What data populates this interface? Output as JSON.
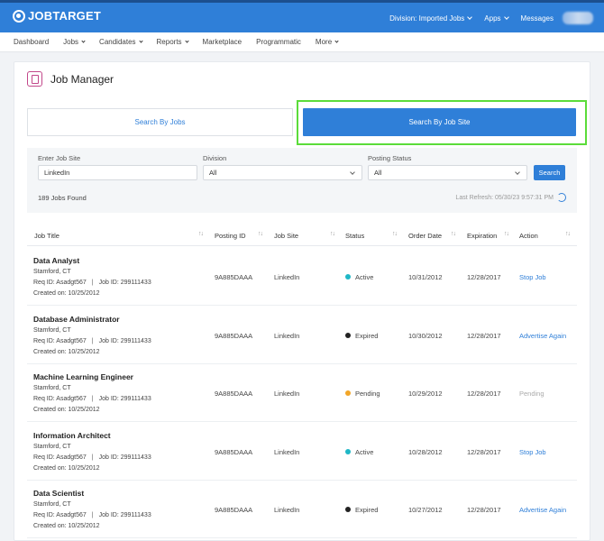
{
  "header": {
    "logo_text": "JOBTARGET",
    "division_label": "Division: Imported Jobs",
    "apps_label": "Apps",
    "messages_label": "Messages"
  },
  "nav": [
    "Dashboard",
    "Jobs",
    "Candidates",
    "Reports",
    "Marketplace",
    "Programmatic",
    "More"
  ],
  "page": {
    "title": "Job Manager",
    "tab_jobs": "Search By Jobs",
    "tab_site": "Search By Job Site"
  },
  "filters": {
    "job_site_label": "Enter Job Site",
    "job_site_value": "LinkedIn",
    "division_label": "Division",
    "division_value": "All",
    "status_label": "Posting Status",
    "status_value": "All",
    "search_label": "Search",
    "jobs_found": "189 Jobs Found",
    "last_refresh": "Last Refresh: 05/30/23 9:57:31 PM"
  },
  "columns": [
    "Job Title",
    "Posting ID",
    "Job Site",
    "Status",
    "Order Date",
    "Expiration",
    "Action"
  ],
  "colors": {
    "active": "#1fb7c6",
    "expired": "#222222",
    "pending": "#f2a628",
    "accent": "#2f7fd8"
  },
  "rows": [
    {
      "title": "Data Analyst",
      "location": "Stamford, CT",
      "req": "Req ID: Asadgt567",
      "job_id": "Job ID: 299111433",
      "created": "Created on: 10/25/2012",
      "posting_id": "9A885DAAA",
      "site": "LinkedIn",
      "status": "Active",
      "order_date": "10/31/2012",
      "expiration": "12/28/2017",
      "action": "Stop Job"
    },
    {
      "title": "Database Administrator",
      "location": "Stamford, CT",
      "req": "Req ID: Asadgt567",
      "job_id": "Job ID: 299111433",
      "created": "Created on: 10/25/2012",
      "posting_id": "9A885DAAA",
      "site": "LinkedIn",
      "status": "Expired",
      "order_date": "10/30/2012",
      "expiration": "12/28/2017",
      "action": "Advertise Again"
    },
    {
      "title": "Machine Learning Engineer",
      "location": "Stamford, CT",
      "req": "Req ID: Asadgt567",
      "job_id": "Job ID: 299111433",
      "created": "Created on: 10/25/2012",
      "posting_id": "9A885DAAA",
      "site": "LinkedIn",
      "status": "Pending",
      "order_date": "10/29/2012",
      "expiration": "12/28/2017",
      "action": "Pending"
    },
    {
      "title": "Information Architect",
      "location": "Stamford, CT",
      "req": "Req ID: Asadgt567",
      "job_id": "Job ID: 299111433",
      "created": "Created on: 10/25/2012",
      "posting_id": "9A885DAAA",
      "site": "LinkedIn",
      "status": "Active",
      "order_date": "10/28/2012",
      "expiration": "12/28/2017",
      "action": "Stop Job"
    },
    {
      "title": "Data Scientist",
      "location": "Stamford, CT",
      "req": "Req ID: Asadgt567",
      "job_id": "Job ID: 299111433",
      "created": "Created on: 10/25/2012",
      "posting_id": "9A885DAAA",
      "site": "LinkedIn",
      "status": "Expired",
      "order_date": "10/27/2012",
      "expiration": "12/28/2017",
      "action": "Advertise Again"
    }
  ]
}
